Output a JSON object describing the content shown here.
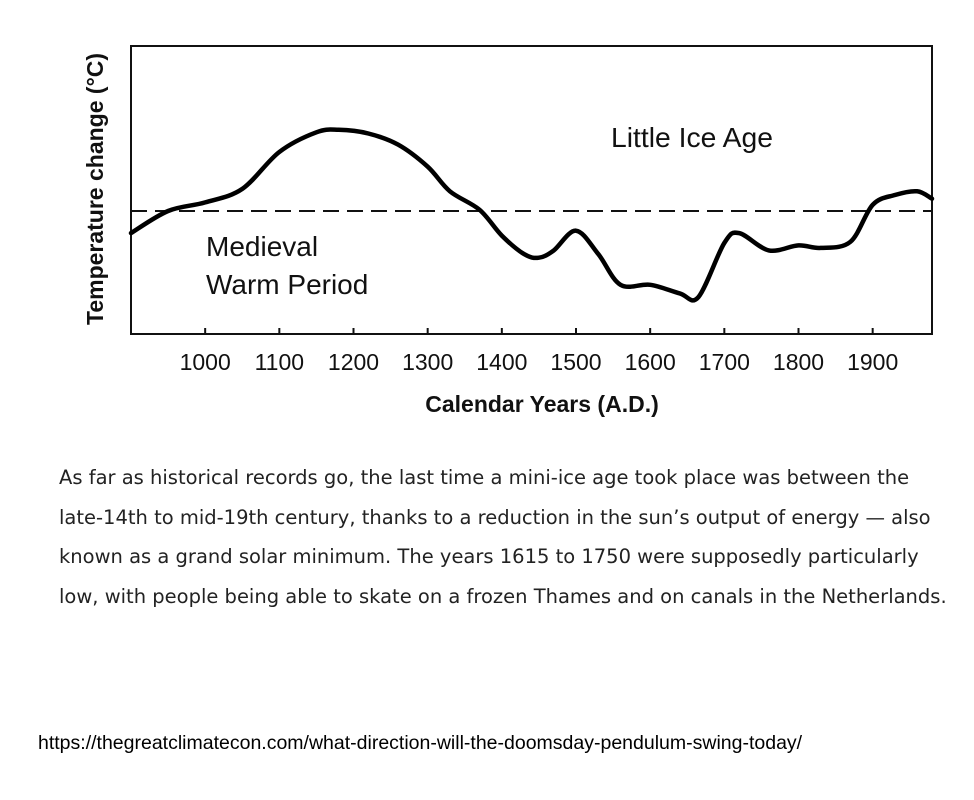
{
  "chart_data": {
    "type": "line",
    "title": "",
    "xlabel": "Calendar Years (A.D.)",
    "ylabel": "Temperature change (°C)",
    "xlim": [
      900,
      1980
    ],
    "ylim": [
      -1.0,
      1.0
    ],
    "x_ticks": [
      "1000",
      "1100",
      "1200",
      "1300",
      "1400",
      "1500",
      "1600",
      "1700",
      "1800",
      "1900"
    ],
    "y_axis_numbers_shown": false,
    "grid": false,
    "baseline": {
      "style": "dashed",
      "y": 0
    },
    "annotations": [
      "Little Ice Age",
      "Medieval\nWarm Period"
    ],
    "series": [
      {
        "x": [
          900,
          950,
          1000,
          1050,
          1100,
          1150,
          1180,
          1220,
          1260,
          1300,
          1330,
          1370,
          1400,
          1430,
          1450,
          1470,
          1500,
          1530,
          1560,
          1600,
          1640,
          1665,
          1700,
          1720,
          1760,
          1800,
          1830,
          1870,
          1900,
          1930,
          1960,
          1980
        ],
        "y": [
          -0.18,
          0.0,
          0.07,
          0.18,
          0.48,
          0.64,
          0.66,
          0.63,
          0.54,
          0.36,
          0.16,
          0.01,
          -0.2,
          -0.35,
          -0.38,
          -0.32,
          -0.16,
          -0.35,
          -0.6,
          -0.6,
          -0.67,
          -0.7,
          -0.26,
          -0.18,
          -0.32,
          -0.28,
          -0.3,
          -0.25,
          0.05,
          0.13,
          0.16,
          0.1
        ]
      }
    ]
  },
  "caption": "As far as historical records go, the last time a mini-ice age took place was between the late-14th to mid-19th century, thanks to a reduction in the sun’s output of energy — also known as a grand solar minimum. The years 1615 to 1750 were supposedly particularly low, with people being able to skate on a frozen Thames and on canals in the Netherlands.",
  "source_url": "https://thegreatclimatecon.com/what-direction-will-the-doomsday-pendulum-swing-today/"
}
